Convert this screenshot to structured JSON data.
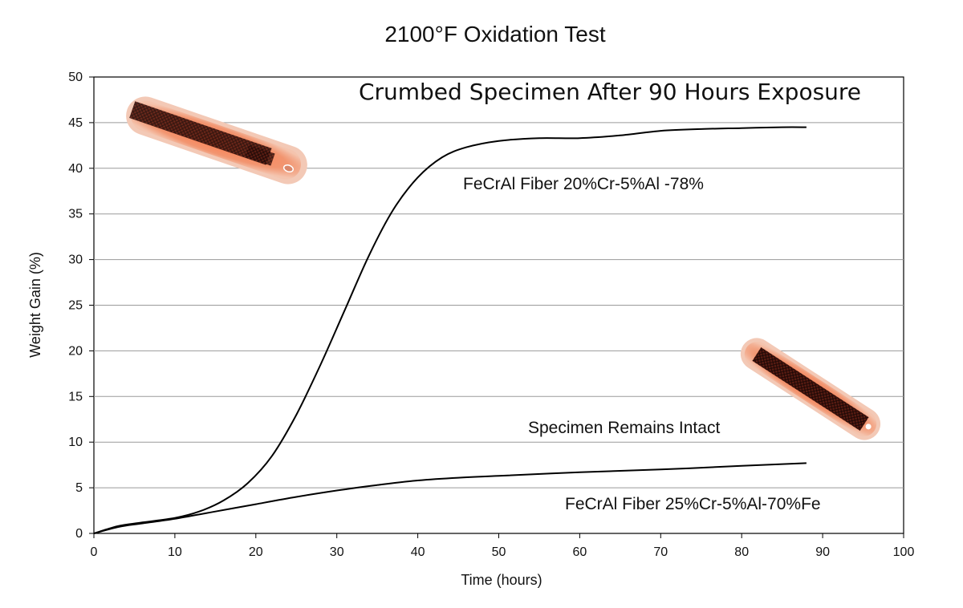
{
  "chart_data": {
    "type": "line",
    "title": "2100°F  Oxidation Test",
    "xlabel": "Time (hours)",
    "ylabel": "Weight Gain (%)",
    "xlim": [
      0,
      100
    ],
    "ylim": [
      0,
      50
    ],
    "xticks": [
      0,
      10,
      20,
      30,
      40,
      50,
      60,
      70,
      80,
      90,
      100
    ],
    "yticks": [
      0,
      5,
      10,
      15,
      20,
      25,
      30,
      35,
      40,
      45,
      50
    ],
    "grid": "horizontal",
    "series": [
      {
        "name": "FeCrAl Fiber 20%Cr-5%Al -78%",
        "x": [
          0,
          3,
          6,
          10,
          13,
          16,
          19,
          22,
          25,
          28,
          31,
          34,
          37,
          40,
          43,
          46,
          50,
          55,
          60,
          65,
          70,
          75,
          80,
          85,
          88
        ],
        "y": [
          0,
          0.8,
          1.2,
          1.7,
          2.4,
          3.6,
          5.5,
          8.5,
          13,
          18.5,
          24.5,
          30.5,
          35.5,
          39,
          41.2,
          42.3,
          43,
          43.3,
          43.3,
          43.6,
          44.1,
          44.3,
          44.4,
          44.5,
          44.5
        ]
      },
      {
        "name": "FeCrAl Fiber  25%Cr-5%Al-70%Fe",
        "x": [
          0,
          3,
          6,
          10,
          15,
          20,
          25,
          30,
          35,
          40,
          45,
          50,
          60,
          70,
          80,
          88
        ],
        "y": [
          0,
          0.7,
          1.1,
          1.6,
          2.4,
          3.2,
          4,
          4.7,
          5.3,
          5.8,
          6.1,
          6.3,
          6.7,
          7.0,
          7.4,
          7.7
        ]
      }
    ],
    "annotations": [
      "Crumbed Specimen After 90 Hours Exposure",
      "FeCrAl Fiber 20%Cr-5%Al -78%",
      "Specimen Remains Intact",
      "FeCrAl Fiber  25%Cr-5%Al-70%Fe"
    ],
    "colors": {
      "line": "#000000",
      "grid": "#9a9a9a",
      "specimen_glow": "#f2845a",
      "specimen_core": "#3a1410"
    }
  }
}
